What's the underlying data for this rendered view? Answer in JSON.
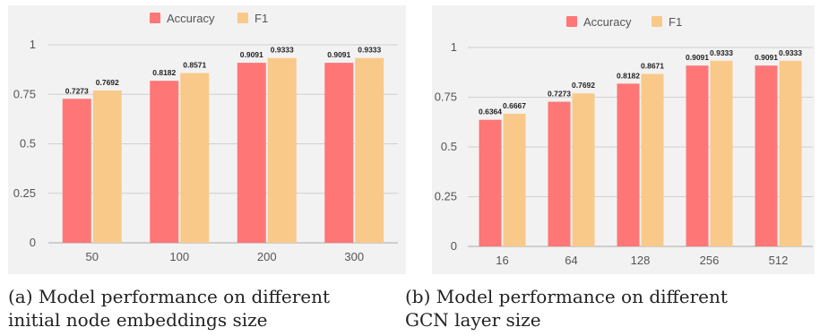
{
  "colors": {
    "accuracy": "#ff7676",
    "f1": "#f9c98a",
    "panel_bg": "#f2f2f2",
    "grid": "#d0d0d0",
    "axis": "#aaaaaa"
  },
  "chart_data": [
    {
      "type": "bar",
      "categories": [
        "50",
        "100",
        "200",
        "300"
      ],
      "series": [
        {
          "name": "Accuracy",
          "values": [
            0.7273,
            0.8182,
            0.9091,
            0.9091
          ],
          "labels": [
            "0.7273",
            "0.8182",
            "0.9091",
            "0.9091"
          ]
        },
        {
          "name": "F1",
          "values": [
            0.7692,
            0.8571,
            0.9333,
            0.9333
          ],
          "labels": [
            "0.7692",
            "0.8571",
            "0.9333",
            "0.9333"
          ]
        }
      ],
      "yticks": [
        "0",
        "0.25",
        "0.5",
        "0.75",
        "1"
      ],
      "ylim": [
        0,
        1
      ],
      "legend": "top-center",
      "grid": true,
      "caption": "(a) Model performance on different\ninitial node embeddings size"
    },
    {
      "type": "bar",
      "categories": [
        "16",
        "64",
        "128",
        "256",
        "512"
      ],
      "series": [
        {
          "name": "Accuracy",
          "values": [
            0.6364,
            0.7273,
            0.8182,
            0.9091,
            0.9091
          ],
          "labels": [
            "0.6364",
            "0.7273",
            "0.8182",
            "0.9091",
            "0.9091"
          ]
        },
        {
          "name": "F1",
          "values": [
            0.6667,
            0.7692,
            0.8671,
            0.9333,
            0.9333
          ],
          "labels": [
            "0.6667",
            "0.7692",
            "0.8671",
            "0.9333",
            "0.9333"
          ]
        }
      ],
      "yticks": [
        "0",
        "0.25",
        "0.5",
        "0.75",
        "1"
      ],
      "ylim": [
        0,
        1
      ],
      "legend": "top-center",
      "grid": true,
      "caption": "(b) Model performance on different\nGCN layer size"
    }
  ]
}
